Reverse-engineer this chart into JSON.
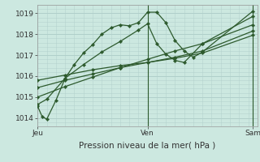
{
  "background_color": "#cce8e0",
  "grid_color": "#b0cfca",
  "line_color": "#2d5a2d",
  "title": "Pression niveau de la mer( hPa )",
  "xtick_labels": [
    "Jeu",
    "Ven",
    "Sam"
  ],
  "ylim": [
    1013.6,
    1019.4
  ],
  "yticks": [
    1014,
    1015,
    1016,
    1017,
    1018,
    1019
  ],
  "xlim": [
    0,
    48
  ],
  "xtick_positions": [
    0,
    24,
    47
  ],
  "vlines": [
    24,
    47
  ],
  "series": [
    [
      0,
      1014.55,
      1,
      1014.05,
      2,
      1013.95,
      4,
      1014.85,
      6,
      1015.9,
      8,
      1016.55,
      10,
      1017.1,
      12,
      1017.5,
      14,
      1018.0,
      16,
      1018.3,
      18,
      1018.45,
      20,
      1018.4,
      22,
      1018.55,
      24,
      1019.05,
      26,
      1019.05,
      28,
      1018.55,
      30,
      1017.7,
      32,
      1017.2,
      34,
      1016.9,
      36,
      1017.15,
      47,
      1019.1
    ],
    [
      0,
      1014.65,
      2,
      1014.9,
      6,
      1015.9,
      10,
      1016.55,
      14,
      1017.15,
      18,
      1017.65,
      22,
      1018.2,
      24,
      1018.5,
      26,
      1017.55,
      28,
      1017.05,
      30,
      1016.75,
      32,
      1016.65,
      36,
      1017.55,
      47,
      1018.85
    ],
    [
      0,
      1015.0,
      6,
      1015.5,
      12,
      1015.95,
      18,
      1016.4,
      24,
      1016.8,
      30,
      1017.2,
      36,
      1017.55,
      47,
      1018.45
    ],
    [
      0,
      1015.45,
      6,
      1015.8,
      12,
      1016.1,
      18,
      1016.4,
      24,
      1016.65,
      30,
      1016.9,
      36,
      1017.2,
      47,
      1018.15
    ],
    [
      0,
      1015.8,
      6,
      1016.05,
      12,
      1016.3,
      18,
      1016.5,
      24,
      1016.65,
      30,
      1016.85,
      36,
      1017.1,
      47,
      1017.95
    ]
  ]
}
